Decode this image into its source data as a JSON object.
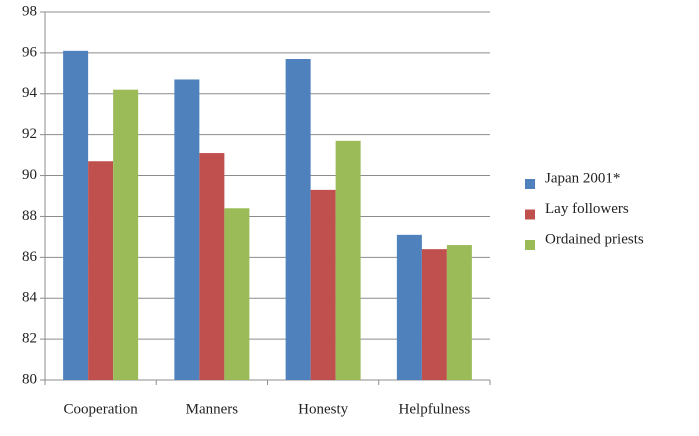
{
  "chart_data": {
    "type": "bar",
    "categories": [
      "Cooperation",
      "Manners",
      "Honesty",
      "Helpfulness"
    ],
    "series": [
      {
        "name": "Japan 2001*",
        "color": "#4f81bd",
        "values": [
          96.1,
          94.7,
          95.7,
          87.1
        ]
      },
      {
        "name": "Lay followers",
        "color": "#c0504d",
        "values": [
          90.7,
          91.1,
          89.3,
          86.4
        ]
      },
      {
        "name": "Ordained priests",
        "color": "#9bbb59",
        "values": [
          94.2,
          88.4,
          91.7,
          86.6
        ]
      }
    ],
    "ylim": [
      80,
      98
    ],
    "yticks": [
      80,
      82,
      84,
      86,
      88,
      90,
      92,
      94,
      96,
      98
    ],
    "grid": true,
    "legend": "right"
  }
}
